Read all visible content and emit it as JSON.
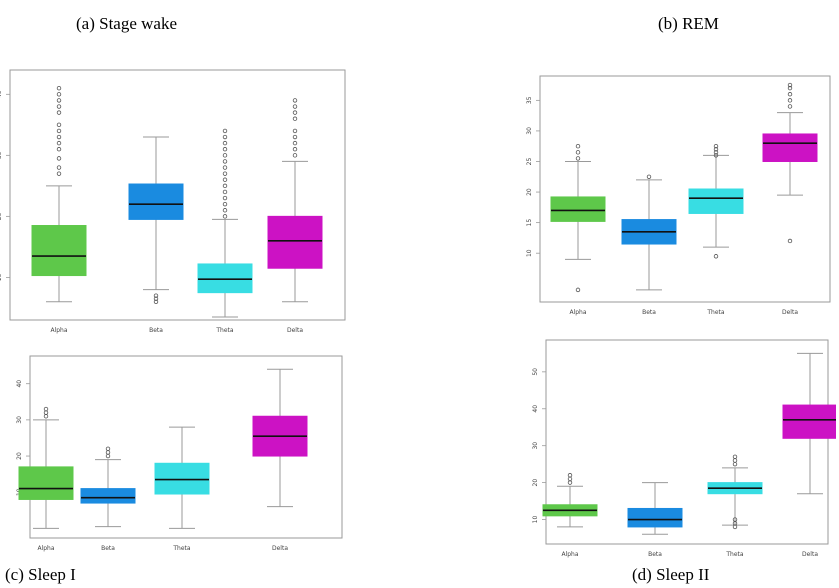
{
  "captions": {
    "a": "(a)   Stage wake",
    "b": "(b) REM",
    "c": "(c) Sleep I",
    "d": "(d) Sleep II"
  },
  "colors": {
    "Alpha": "#5ec84a",
    "Beta": "#1a8be0",
    "Theta": "#38dde3",
    "Delta": "#cc12c4",
    "whisker": "#9a9a9a",
    "median": "#111111",
    "outlier": "#555555",
    "frame": "#9a9a9a"
  },
  "chart_data": [
    {
      "type": "box",
      "title": "(a)   Stage wake",
      "categories": [
        "Alpha",
        "Beta",
        "Theta",
        "Delta"
      ],
      "yticks": [
        10,
        20,
        30,
        40
      ],
      "ylim": [
        4,
        43
      ],
      "boxes": [
        {
          "name": "Alpha",
          "min": 6,
          "q1": 10.3,
          "median": 13.5,
          "q3": 18.5,
          "max": 25,
          "outliers": [
            27,
            28,
            29.5,
            31,
            32,
            33,
            34,
            35,
            37,
            38,
            39,
            40,
            41
          ]
        },
        {
          "name": "Beta",
          "min": 8,
          "q1": 19.5,
          "median": 22,
          "q3": 25.3,
          "max": 33,
          "outliers": [
            6,
            6.5,
            7
          ]
        },
        {
          "name": "Theta",
          "min": 3.5,
          "q1": 7.5,
          "median": 9.7,
          "q3": 12.2,
          "max": 19.5,
          "outliers": [
            20,
            21,
            22,
            23,
            24,
            25,
            26,
            27,
            28,
            29,
            30,
            31,
            32,
            33,
            34
          ]
        },
        {
          "name": "Delta",
          "min": 6,
          "q1": 11.5,
          "median": 16,
          "q3": 20,
          "max": 29,
          "outliers": [
            30,
            31,
            32,
            33,
            34,
            36,
            37,
            38,
            39
          ]
        }
      ]
    },
    {
      "type": "box",
      "title": "(b) REM",
      "categories": [
        "Alpha",
        "Beta",
        "Theta",
        "Delta"
      ],
      "yticks": [
        10,
        15,
        20,
        25,
        30,
        35
      ],
      "ylim": [
        3,
        38
      ],
      "boxes": [
        {
          "name": "Alpha",
          "min": 9,
          "q1": 15.2,
          "median": 17,
          "q3": 19.2,
          "max": 25,
          "outliers": [
            4,
            25.5,
            26.5,
            27.5
          ]
        },
        {
          "name": "Beta",
          "min": 4,
          "q1": 11.5,
          "median": 13.5,
          "q3": 15.5,
          "max": 22,
          "outliers": [
            22.5
          ]
        },
        {
          "name": "Theta",
          "min": 11,
          "q1": 16.5,
          "median": 19,
          "q3": 20.5,
          "max": 26,
          "outliers": [
            9.5,
            26,
            26.5,
            27,
            27.5
          ]
        },
        {
          "name": "Delta",
          "min": 19.5,
          "q1": 25,
          "median": 28,
          "q3": 29.5,
          "max": 33,
          "outliers": [
            12,
            34,
            35,
            36,
            37,
            37.5
          ]
        }
      ]
    },
    {
      "type": "box",
      "title": "(c) Sleep I",
      "categories": [
        "Alpha",
        "Beta",
        "Theta",
        "Delta"
      ],
      "yticks": [
        10,
        20,
        30,
        40
      ],
      "ylim": [
        -1,
        46
      ],
      "boxes": [
        {
          "name": "Alpha",
          "min": 0,
          "q1": 8,
          "median": 11,
          "q3": 17,
          "max": 30,
          "outliers": [
            31,
            32,
            33
          ]
        },
        {
          "name": "Beta",
          "min": 0.5,
          "q1": 7,
          "median": 8.5,
          "q3": 11,
          "max": 19,
          "outliers": [
            20,
            21,
            22
          ]
        },
        {
          "name": "Theta",
          "min": 0,
          "q1": 9.5,
          "median": 13.5,
          "q3": 18,
          "max": 28,
          "outliers": []
        },
        {
          "name": "Delta",
          "min": 6,
          "q1": 20,
          "median": 25.5,
          "q3": 31,
          "max": 44,
          "outliers": []
        }
      ]
    },
    {
      "type": "box",
      "title": "(d) Sleep II",
      "categories": [
        "Alpha",
        "Beta",
        "Theta",
        "Delta"
      ],
      "yticks": [
        10,
        20,
        30,
        40,
        50
      ],
      "ylim": [
        5,
        57
      ],
      "boxes": [
        {
          "name": "Alpha",
          "min": 8,
          "q1": 11,
          "median": 12.5,
          "q3": 14,
          "max": 19,
          "outliers": [
            20,
            21,
            22
          ]
        },
        {
          "name": "Beta",
          "min": 6,
          "q1": 8,
          "median": 10,
          "q3": 13,
          "max": 20,
          "outliers": []
        },
        {
          "name": "Theta",
          "min": 8.5,
          "q1": 17,
          "median": 18.5,
          "q3": 20,
          "max": 24,
          "outliers": [
            8,
            9,
            10,
            25,
            26,
            27
          ]
        },
        {
          "name": "Delta",
          "min": 17,
          "q1": 32,
          "median": 37,
          "q3": 41,
          "max": 55,
          "outliers": []
        }
      ]
    }
  ]
}
